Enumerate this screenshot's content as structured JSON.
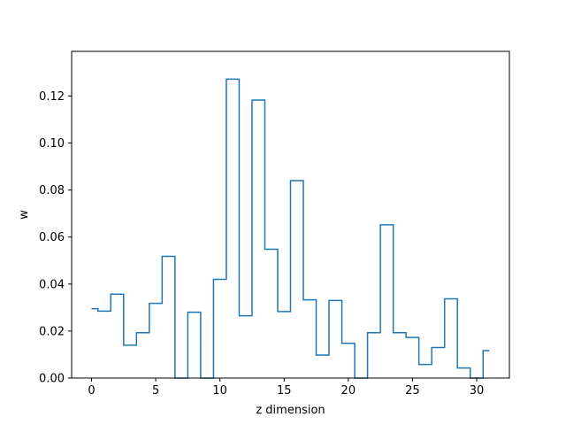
{
  "chart_data": {
    "type": "line",
    "drawstyle": "steps-mid",
    "title": "",
    "xlabel": "z dimension",
    "ylabel": "w",
    "xlim": [
      -1.55,
      32.55
    ],
    "ylim": [
      0,
      0.139
    ],
    "grid": false,
    "legend": "none",
    "xticks": [
      0,
      5,
      10,
      15,
      20,
      25,
      30
    ],
    "xtick_labels": [
      "0",
      "5",
      "10",
      "15",
      "20",
      "25",
      "30"
    ],
    "yticks": [
      0.0,
      0.02,
      0.04,
      0.06,
      0.08,
      0.1,
      0.12
    ],
    "ytick_labels": [
      "0.00",
      "0.02",
      "0.04",
      "0.06",
      "0.08",
      "0.10",
      "0.12"
    ],
    "series": [
      {
        "color": "#1f77b4",
        "x": [
          0,
          1,
          2,
          3,
          4,
          5,
          6,
          7,
          8,
          9,
          10,
          11,
          12,
          13,
          14,
          15,
          16,
          17,
          18,
          19,
          20,
          21,
          22,
          23,
          24,
          25,
          26,
          27,
          28,
          29,
          30,
          31
        ],
        "y": [
          0.0295,
          0.0285,
          0.0357,
          0.014,
          0.0193,
          0.0318,
          0.0518,
          0.0,
          0.028,
          0.0,
          0.042,
          0.1272,
          0.0265,
          0.1183,
          0.0548,
          0.0283,
          0.084,
          0.0333,
          0.0098,
          0.033,
          0.0148,
          0.0,
          0.0193,
          0.0652,
          0.0193,
          0.0173,
          0.0058,
          0.013,
          0.0337,
          0.0043,
          0.0,
          0.0117
        ]
      }
    ]
  }
}
